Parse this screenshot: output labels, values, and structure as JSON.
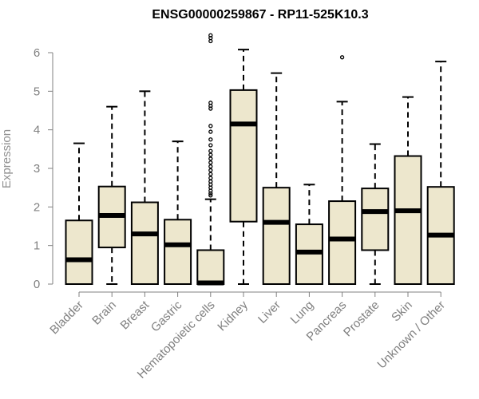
{
  "chart_data": {
    "type": "boxplot",
    "title": "ENSG00000259867 - RP11-525K10.3",
    "xlabel": "",
    "ylabel": "Expression",
    "ylim": [
      0,
      6
    ],
    "yticks": [
      0,
      1,
      2,
      3,
      4,
      5,
      6
    ],
    "grid": false,
    "legend": "none",
    "box_fill": "#ede7cd",
    "box_stroke": "#000000",
    "categories": [
      "Bladder",
      "Brain",
      "Breast",
      "Gastric",
      "Hematopoietic cells",
      "Kidney",
      "Liver",
      "Lung",
      "Pancreas",
      "Prostate",
      "Skin",
      "Unknown / Other"
    ],
    "boxes": [
      {
        "min": 0,
        "q1": 0,
        "median": 0.63,
        "q3": 1.65,
        "max": 3.65,
        "outliers": []
      },
      {
        "min": 0,
        "q1": 0.95,
        "median": 1.78,
        "q3": 2.53,
        "max": 4.6,
        "outliers": []
      },
      {
        "min": 0,
        "q1": 0,
        "median": 1.3,
        "q3": 2.12,
        "max": 5.0,
        "outliers": []
      },
      {
        "min": 0,
        "q1": 0,
        "median": 1.02,
        "q3": 1.67,
        "max": 3.7,
        "outliers": []
      },
      {
        "min": 0,
        "q1": 0,
        "median": 0.03,
        "q3": 0.88,
        "max": 2.2,
        "outliers": [
          2.3,
          2.35,
          2.42,
          2.5,
          2.58,
          2.66,
          2.75,
          2.85,
          2.95,
          3.05,
          3.15,
          3.25,
          3.35,
          3.45,
          3.6,
          3.75,
          3.95,
          4.1,
          4.55,
          4.62,
          4.7,
          6.3,
          6.38,
          6.45
        ]
      },
      {
        "min": 0,
        "q1": 1.62,
        "median": 4.15,
        "q3": 5.03,
        "max": 6.08,
        "outliers": []
      },
      {
        "min": 0,
        "q1": 0,
        "median": 1.6,
        "q3": 2.5,
        "max": 5.47,
        "outliers": []
      },
      {
        "min": 0,
        "q1": 0,
        "median": 0.83,
        "q3": 1.55,
        "max": 2.58,
        "outliers": []
      },
      {
        "min": 0,
        "q1": 0,
        "median": 1.17,
        "q3": 2.15,
        "max": 4.73,
        "outliers": [
          5.88
        ]
      },
      {
        "min": 0,
        "q1": 0.88,
        "median": 1.88,
        "q3": 2.48,
        "max": 3.63,
        "outliers": []
      },
      {
        "min": 0,
        "q1": 0,
        "median": 1.9,
        "q3": 3.32,
        "max": 4.85,
        "outliers": []
      },
      {
        "min": 0,
        "q1": 0,
        "median": 1.27,
        "q3": 2.52,
        "max": 5.77,
        "outliers": []
      }
    ]
  }
}
